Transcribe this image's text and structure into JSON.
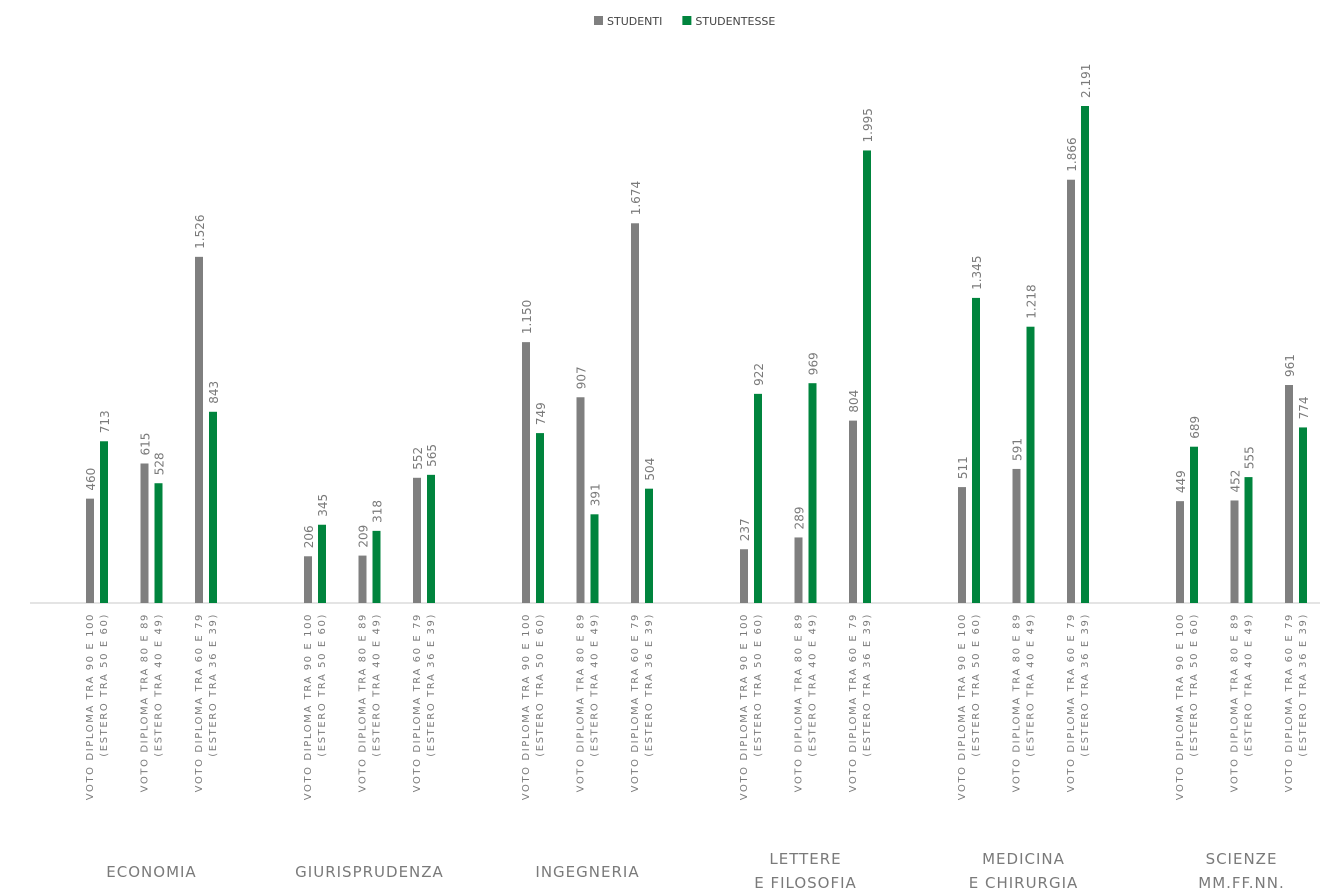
{
  "chart_data": {
    "type": "bar",
    "groups": [
      [
        "ECONOMIA"
      ],
      [
        "GIURISPRUDENZA"
      ],
      [
        "INGEGNERIA"
      ],
      [
        "LETTERE",
        "E FILOSOFIA"
      ],
      [
        "MEDICINA",
        "E CHIRURGIA"
      ],
      [
        "SCIENZE",
        "MM.FF.NN."
      ]
    ],
    "categories": [
      [
        "VOTO DIPLOMA TRA 90 E 100",
        "(ESTERO TRA 50 E 60)"
      ],
      [
        "VOTO DIPLOMA TRA 80 E 89",
        "(ESTERO TRA 40 E 49)"
      ],
      [
        "VOTO DIPLOMA TRA 60 E 79",
        "(ESTERO TRA 36 E 39)"
      ],
      [
        "VOTO DIPLOMA TRA 90 E 100",
        "(ESTERO TRA 50 E 60)"
      ],
      [
        "VOTO DIPLOMA TRA 80 E 89",
        "(ESTERO TRA 40 E 49)"
      ],
      [
        "VOTO DIPLOMA TRA 60 E 79",
        "(ESTERO TRA 36 E 39)"
      ],
      [
        "VOTO DIPLOMA TRA 90 E 100",
        "(ESTERO TRA 50 E 60)"
      ],
      [
        "VOTO DIPLOMA TRA 80 E 89",
        "(ESTERO TRA 40 E 49)"
      ],
      [
        "VOTO DIPLOMA TRA 60 E 79",
        "(ESTERO TRA 36 E 39)"
      ],
      [
        "VOTO DIPLOMA TRA 90 E 100",
        "(ESTERO TRA 50 E 60)"
      ],
      [
        "VOTO DIPLOMA TRA 80 E 89",
        "(ESTERO TRA 40 E 49)"
      ],
      [
        "VOTO DIPLOMA TRA 60 E 79",
        "(ESTERO TRA 36 E 39)"
      ],
      [
        "VOTO DIPLOMA TRA 90 E 100",
        "(ESTERO TRA 50 E 60)"
      ],
      [
        "VOTO DIPLOMA TRA 80 E 89",
        "(ESTERO TRA 40 E 49)"
      ],
      [
        "VOTO DIPLOMA TRA 60 E 79",
        "(ESTERO TRA 36 E 39)"
      ],
      [
        "VOTO DIPLOMA TRA 90 E 100",
        "(ESTERO TRA 50 E 60)"
      ],
      [
        "VOTO DIPLOMA TRA 80 E 89",
        "(ESTERO TRA 40 E 49)"
      ],
      [
        "VOTO DIPLOMA TRA 60 E 79",
        "(ESTERO TRA 36 E 39)"
      ]
    ],
    "series": [
      {
        "name": "STUDENTI",
        "color": "#7f7f7f",
        "values": [
          460,
          615,
          1526,
          206,
          209,
          552,
          1150,
          907,
          1674,
          237,
          289,
          804,
          511,
          591,
          1866,
          449,
          452,
          961
        ],
        "value_labels": [
          "460",
          "615",
          "1.526",
          "206",
          "209",
          "552",
          "1.150",
          "907",
          "1.674",
          "237",
          "289",
          "804",
          "511",
          "591",
          "1.866",
          "449",
          "452",
          "961"
        ]
      },
      {
        "name": "STUDENTESSE",
        "color": "#00843d",
        "values": [
          713,
          528,
          843,
          345,
          318,
          565,
          749,
          391,
          504,
          922,
          969,
          1995,
          1345,
          1218,
          2191,
          689,
          555,
          774
        ],
        "value_labels": [
          "713",
          "528",
          "843",
          "345",
          "318",
          "565",
          "749",
          "391",
          "504",
          "922",
          "969",
          "1.995",
          "1.345",
          "1.218",
          "2.191",
          "689",
          "555",
          "774"
        ]
      }
    ],
    "legend": "top"
  }
}
